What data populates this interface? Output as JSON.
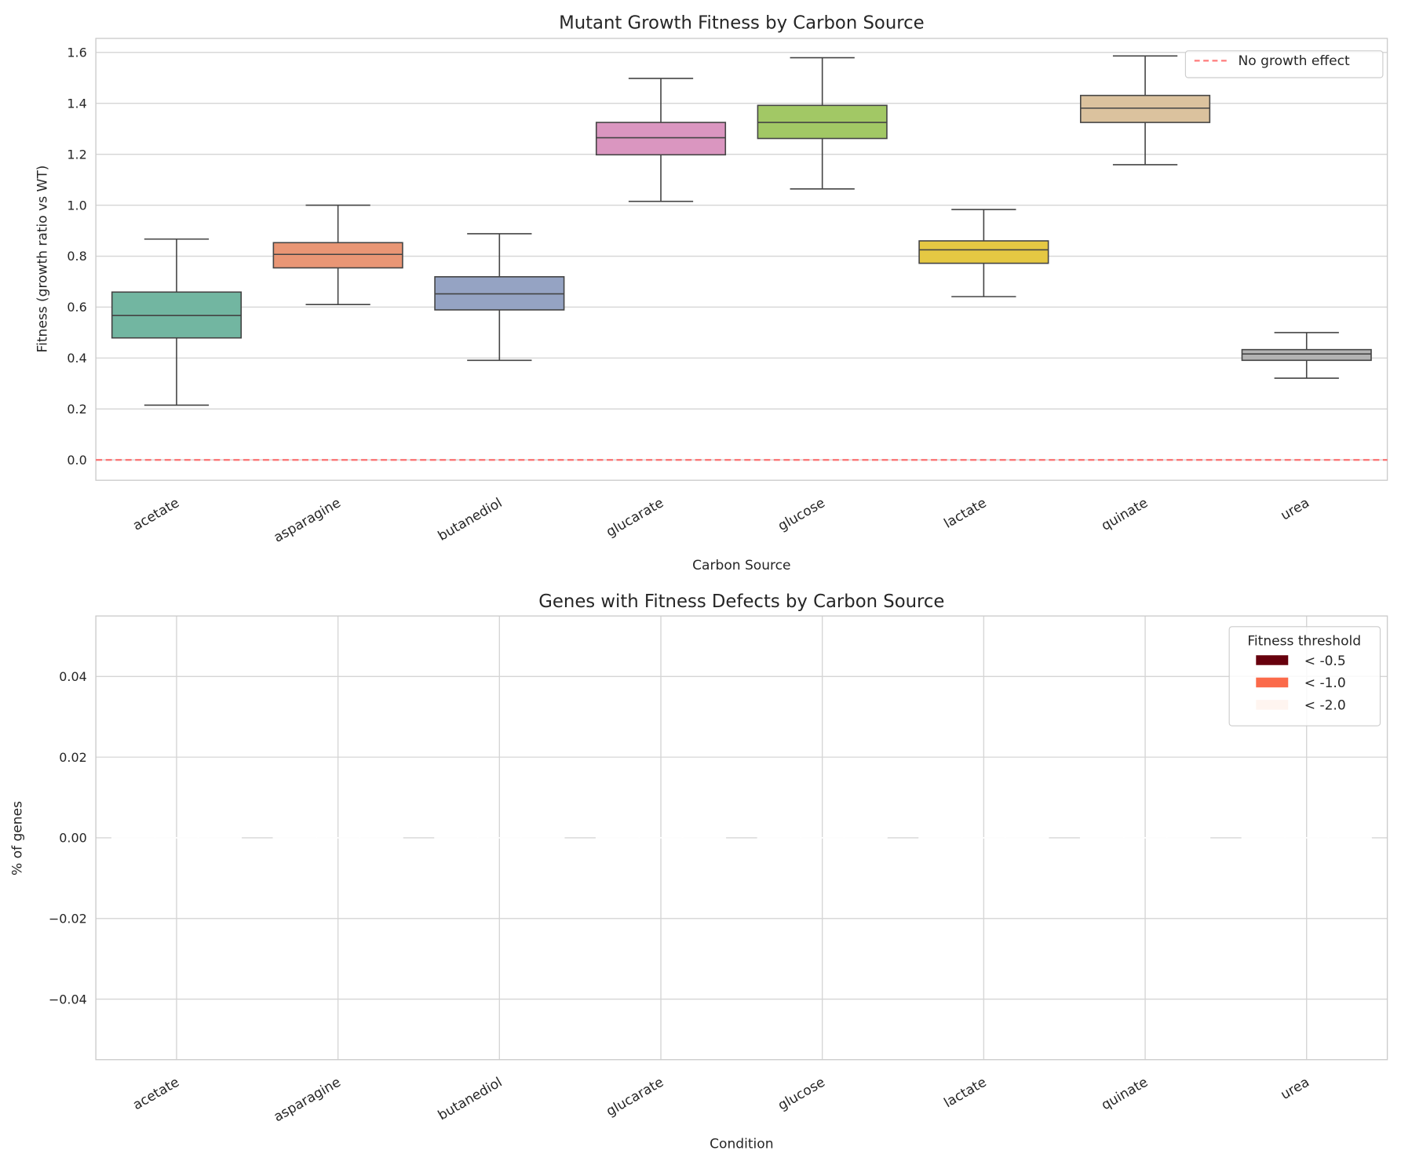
{
  "chart_data": [
    {
      "type": "box",
      "title": "Mutant Growth Fitness by Carbon Source",
      "xlabel": "Carbon Source",
      "ylabel": "Fitness (growth ratio vs WT)",
      "categories": [
        "acetate",
        "asparagine",
        "butanediol",
        "glucarate",
        "glucose",
        "lactate",
        "quinate",
        "urea"
      ],
      "boxes": [
        {
          "whisker_low": 0.215,
          "q1": 0.479,
          "median": 0.567,
          "q3": 0.659,
          "whisker_high": 0.867,
          "color": "#72b6a1"
        },
        {
          "whisker_low": 0.61,
          "q1": 0.754,
          "median": 0.807,
          "q3": 0.853,
          "whisker_high": 1.0,
          "color": "#e99675"
        },
        {
          "whisker_low": 0.391,
          "q1": 0.589,
          "median": 0.652,
          "q3": 0.719,
          "whisker_high": 0.888,
          "color": "#95a3c3"
        },
        {
          "whisker_low": 1.015,
          "q1": 1.198,
          "median": 1.265,
          "q3": 1.325,
          "whisker_high": 1.498,
          "color": "#da96c0"
        },
        {
          "whisker_low": 1.064,
          "q1": 1.262,
          "median": 1.325,
          "q3": 1.392,
          "whisker_high": 1.579,
          "color": "#a2c865"
        },
        {
          "whisker_low": 0.641,
          "q1": 0.772,
          "median": 0.825,
          "q3": 0.86,
          "whisker_high": 0.983,
          "color": "#e5c843"
        },
        {
          "whisker_low": 1.159,
          "q1": 1.325,
          "median": 1.381,
          "q3": 1.431,
          "whisker_high": 1.586,
          "color": "#dbc29e"
        },
        {
          "whisker_low": 0.321,
          "q1": 0.391,
          "median": 0.416,
          "q3": 0.433,
          "whisker_high": 0.5,
          "color": "#b3b3b3"
        }
      ],
      "ylim": [
        -0.08,
        1.655
      ],
      "yticks": [
        "0.0",
        "0.2",
        "0.4",
        "0.6",
        "0.8",
        "1.0",
        "1.2",
        "1.4",
        "1.6"
      ],
      "reference_line": {
        "y": 0,
        "label": "No growth effect",
        "color": "#ff5a5a",
        "style": "dashed"
      },
      "legend": "top-right",
      "grid": true
    },
    {
      "type": "bar",
      "title": "Genes with Fitness Defects by Carbon Source",
      "xlabel": "Condition",
      "ylabel": "% of genes",
      "categories": [
        "acetate",
        "asparagine",
        "butanediol",
        "glucarate",
        "glucose",
        "lactate",
        "quinate",
        "urea"
      ],
      "series": [
        {
          "name": "< -0.5",
          "color": "#67000d",
          "values": [
            0,
            0,
            0,
            0,
            0,
            0,
            0,
            0
          ]
        },
        {
          "name": "< -1.0",
          "color": "#fb6a4a",
          "values": [
            0,
            0,
            0,
            0,
            0,
            0,
            0,
            0
          ]
        },
        {
          "name": "< -2.0",
          "color": "#fff5f0",
          "values": [
            0,
            0,
            0,
            0,
            0,
            0,
            0,
            0
          ]
        }
      ],
      "legend_title": "Fitness threshold",
      "ylim": [
        -0.055,
        0.055
      ],
      "yticks": [
        "−0.04",
        "−0.02",
        "0.00",
        "0.02",
        "0.04"
      ],
      "legend": "top-right",
      "grid": true
    }
  ]
}
